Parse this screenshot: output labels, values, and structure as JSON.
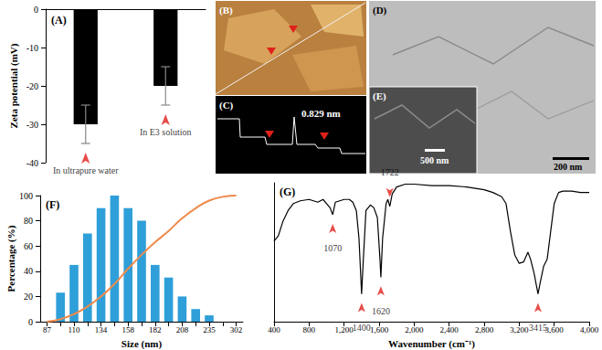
{
  "chart_data": [
    {
      "type": "bar",
      "title": "(A)",
      "y_label": "Zeta potential (mV)",
      "categories": [
        "In ultrapure water",
        "In E3 solution"
      ],
      "values": [
        -30,
        -20
      ],
      "errors": [
        5,
        5
      ],
      "color": "#000000",
      "ylim": [
        -40,
        0
      ],
      "yticks": [
        0,
        -10,
        -20,
        -30,
        -40
      ],
      "tick_labels": "y",
      "grid": false
    },
    {
      "type": "bar",
      "title": "(F)",
      "x_label": "Size (nm)",
      "y_label": "Percentage (%)",
      "categories": [
        "87",
        null,
        "110",
        null,
        "134",
        null,
        "158",
        null,
        "182",
        null,
        "208",
        null,
        "235",
        null,
        "302"
      ],
      "series": [
        {
          "type": "bar",
          "color": "#2e9fd8",
          "values": [
            0,
            23,
            45,
            70,
            90,
            100,
            90,
            80,
            45,
            35,
            20,
            10,
            5,
            0,
            0
          ]
        },
        {
          "type": "line",
          "color": "#f08a4b",
          "values": [
            0,
            2,
            6,
            12,
            20,
            30,
            42,
            53,
            63,
            72,
            82,
            90,
            96,
            99,
            100
          ]
        }
      ],
      "ylim": [
        0,
        100
      ],
      "yticks": [
        0,
        20,
        40,
        60,
        80,
        100
      ],
      "grid": false
    },
    {
      "type": "line",
      "title": "(G)",
      "x_label": "Wavenumber (cm⁻¹)",
      "x": [
        400,
        450,
        500,
        560,
        620,
        700,
        800,
        900,
        960,
        1000,
        1040,
        1070,
        1100,
        1150,
        1200,
        1260,
        1300,
        1340,
        1370,
        1400,
        1420,
        1450,
        1500,
        1540,
        1580,
        1610,
        1620,
        1640,
        1680,
        1700,
        1722,
        1750,
        1800,
        1900,
        2000,
        2200,
        2400,
        2600,
        2800,
        2900,
        3000,
        3050,
        3100,
        3150,
        3200,
        3250,
        3300,
        3330,
        3370,
        3415,
        3440,
        3480,
        3520,
        3560,
        3600,
        3650,
        3700,
        3800,
        3900,
        4000
      ],
      "values": [
        58,
        62,
        72,
        80,
        85,
        87,
        88,
        86,
        88,
        85,
        82,
        77,
        86,
        87,
        88,
        88,
        86,
        80,
        60,
        20,
        45,
        80,
        84,
        82,
        75,
        45,
        32,
        60,
        85,
        88,
        83,
        92,
        97,
        99,
        99,
        98,
        98,
        97,
        95,
        93,
        90,
        85,
        65,
        48,
        42,
        43,
        50,
        45,
        35,
        20,
        28,
        40,
        45,
        65,
        85,
        93,
        94,
        94,
        93,
        93
      ],
      "color": "#000000",
      "peaks": [
        1070,
        1400,
        1620,
        1722,
        3415
      ],
      "xlim": [
        400,
        4000
      ],
      "xticks": [
        400,
        800,
        1200,
        1600,
        2000,
        2400,
        2800,
        3200,
        3600,
        4000
      ],
      "ylim": [
        0,
        100
      ],
      "yticks": [],
      "tick_labels": "x",
      "grid": false
    }
  ],
  "image_panels": [
    {
      "label": "(B)"
    },
    {
      "label": "(C)",
      "text": "0.829 nm"
    },
    {
      "label": "(D)",
      "scale_bar": "200 nm"
    },
    {
      "label": "(E)",
      "scale_bar": "500 nm"
    }
  ]
}
